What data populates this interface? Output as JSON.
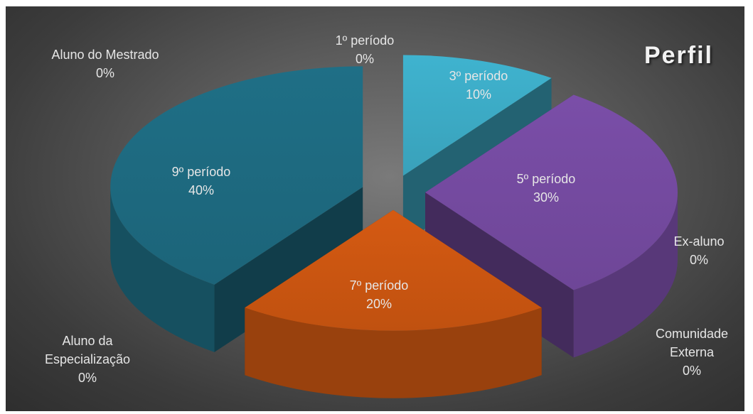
{
  "chart_data": {
    "type": "pie",
    "title": "Perfil",
    "slices": [
      {
        "name": "1º período",
        "percent_label": "0%",
        "value": 0,
        "color": "#3fb3cf"
      },
      {
        "name": "3º período",
        "percent_label": "10%",
        "value": 10,
        "color": "#3fb3cf"
      },
      {
        "name": "5º período",
        "percent_label": "30%",
        "value": 30,
        "color": "#7a4ea8"
      },
      {
        "name": "Ex-aluno",
        "percent_label": "0%",
        "value": 0,
        "color": "#7a4ea8"
      },
      {
        "name": "Comunidade Externa",
        "percent_label": "0%",
        "value": 0,
        "color": "#d55a12"
      },
      {
        "name": "7º período",
        "percent_label": "20%",
        "value": 20,
        "color": "#d55a12"
      },
      {
        "name": "Aluno da Especialização",
        "percent_label": "0%",
        "value": 0,
        "color": "#1f6f86"
      },
      {
        "name": "9º período",
        "percent_label": "40%",
        "value": 40,
        "color": "#1f6f86"
      },
      {
        "name": "Aluno do Mestrado",
        "percent_label": "0%",
        "value": 0,
        "color": "#1f6f86"
      }
    ]
  }
}
